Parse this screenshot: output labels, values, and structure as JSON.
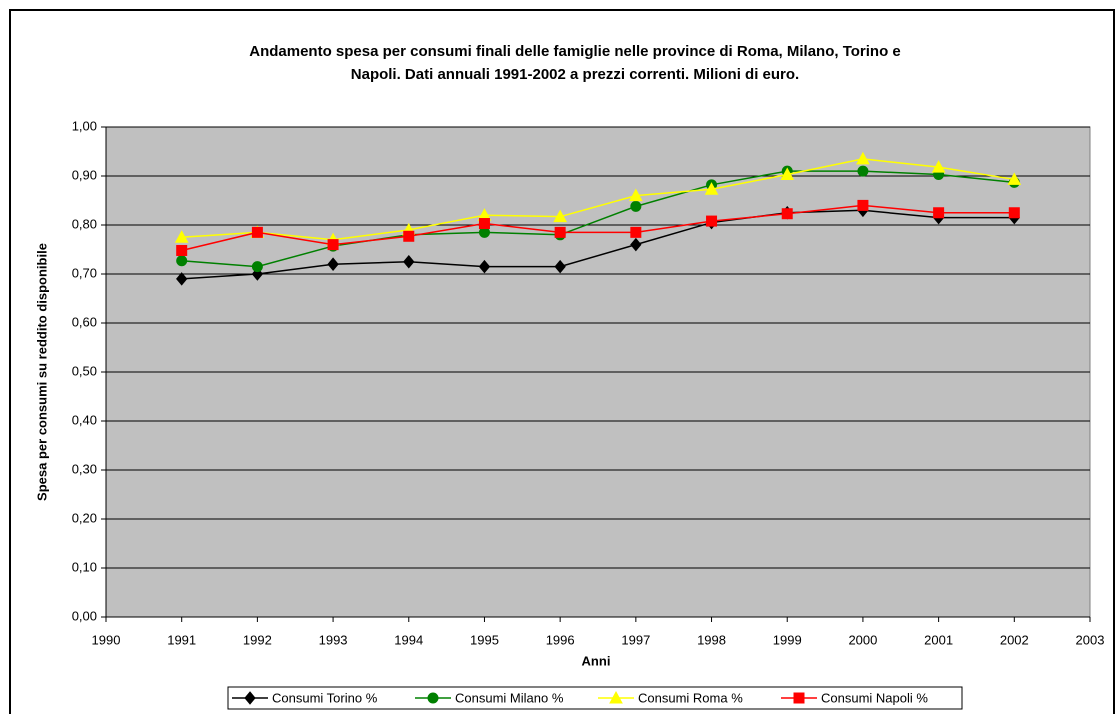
{
  "chart_data": {
    "type": "line",
    "title": [
      "Andamento spesa per consumi finali delle famiglie nelle province di Roma, Milano, Torino e",
      "Napoli. Dati annuali 1991-2002 a prezzi correnti. Milioni di euro."
    ],
    "x_label": "Anni",
    "y_label": "Spesa per consumi su reddito disponibile",
    "x": [
      1991,
      1992,
      1993,
      1994,
      1995,
      1996,
      1997,
      1998,
      1999,
      2000,
      2001,
      2002
    ],
    "xlim": [
      1990,
      2003
    ],
    "xticks": [
      1990,
      1991,
      1992,
      1993,
      1994,
      1995,
      1996,
      1997,
      1998,
      1999,
      2000,
      2001,
      2002,
      2003
    ],
    "ylim": [
      0,
      1
    ],
    "yticks": [
      {
        "value": 0,
        "label": "0,00"
      },
      {
        "value": 0.1,
        "label": "0,10"
      },
      {
        "value": 0.2,
        "label": "0,20"
      },
      {
        "value": 0.3,
        "label": "0,30"
      },
      {
        "value": 0.4,
        "label": "0,40"
      },
      {
        "value": 0.5,
        "label": "0,50"
      },
      {
        "value": 0.6,
        "label": "0,60"
      },
      {
        "value": 0.7,
        "label": "0,70"
      },
      {
        "value": 0.8,
        "label": "0,80"
      },
      {
        "value": 0.9,
        "label": "0,90"
      },
      {
        "value": 1,
        "label": "1,00"
      }
    ],
    "grid": true,
    "plot_background": "#c0c0c0",
    "legend": "bottom",
    "series": [
      {
        "name": "Consumi Torino %",
        "color": "#000000",
        "marker": "diamond",
        "values": [
          0.69,
          0.7,
          0.72,
          0.725,
          0.715,
          0.715,
          0.76,
          0.805,
          0.825,
          0.83,
          0.815,
          0.815
        ]
      },
      {
        "name": "Consumi Milano %",
        "color": "#008000",
        "marker": "circle",
        "values": [
          0.727,
          0.715,
          0.757,
          0.78,
          0.785,
          0.78,
          0.838,
          0.882,
          0.91,
          0.91,
          0.903,
          0.887
        ]
      },
      {
        "name": "Consumi Roma %",
        "color": "#ffff00",
        "marker": "triangle",
        "values": [
          0.775,
          0.785,
          0.77,
          0.79,
          0.82,
          0.817,
          0.86,
          0.873,
          0.903,
          0.935,
          0.918,
          0.893
        ]
      },
      {
        "name": "Consumi Napoli %",
        "color": "#ff0000",
        "marker": "square",
        "values": [
          0.748,
          0.785,
          0.76,
          0.777,
          0.803,
          0.785,
          0.785,
          0.808,
          0.823,
          0.84,
          0.825,
          0.825
        ]
      }
    ]
  }
}
